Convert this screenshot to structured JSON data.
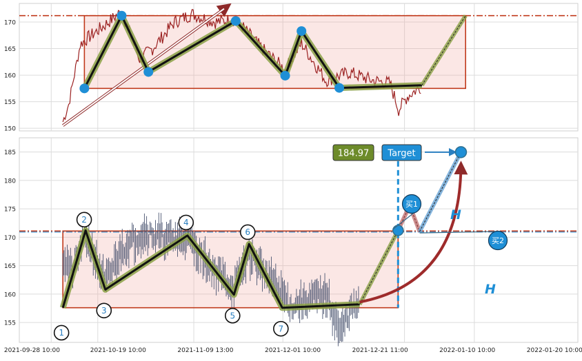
{
  "chart_data": [
    {
      "type": "line",
      "panel": "top",
      "ylim": [
        149.5,
        173.5
      ],
      "yticks": [
        150,
        155,
        160,
        165,
        170
      ],
      "grid": true,
      "resistance_level": 171.2,
      "support_level": 157.5,
      "pattern_points": [
        {
          "x": 0.145,
          "y": 157.5
        },
        {
          "x": 0.209,
          "y": 171.2
        },
        {
          "x": 0.255,
          "y": 160.6
        },
        {
          "x": 0.405,
          "y": 170.2
        },
        {
          "x": 0.49,
          "y": 159.9
        },
        {
          "x": 0.518,
          "y": 168.3
        },
        {
          "x": 0.583,
          "y": 157.6
        },
        {
          "x": 0.725,
          "y": 158.1
        },
        {
          "x": 0.8,
          "y": 171.2
        }
      ]
    },
    {
      "type": "line",
      "panel": "bottom",
      "ylim": [
        151.5,
        187.5
      ],
      "yticks": [
        155,
        160,
        165,
        170,
        175,
        180,
        185
      ],
      "grid": true,
      "x_tick_labels": [
        "2021-09-28 10:00",
        "2021-10-19 10:00",
        "2021-11-09 13:00",
        "2021-12-01 10:00",
        "2021-12-21 11:00",
        "2022-01-10 10:00",
        "2022-01-20 10:00"
      ],
      "resistance_level": 171.1,
      "support_level": 157.6,
      "target_value": "184.97",
      "target_label": "Target",
      "buy1_label": "买1",
      "buy2_label": "买2",
      "height_label": "H",
      "point_labels": [
        "1",
        "2",
        "3",
        "4",
        "5",
        "6",
        "7"
      ],
      "pattern_points": [
        {
          "x": 0.108,
          "y": 157.6
        },
        {
          "x": 0.147,
          "y": 171.2
        },
        {
          "x": 0.181,
          "y": 160.8
        },
        {
          "x": 0.322,
          "y": 170.3
        },
        {
          "x": 0.402,
          "y": 159.9
        },
        {
          "x": 0.428,
          "y": 168.8
        },
        {
          "x": 0.485,
          "y": 157.6
        },
        {
          "x": 0.618,
          "y": 158.2
        },
        {
          "x": 0.684,
          "y": 171.2
        }
      ],
      "breakout": {
        "x": 0.684,
        "y": 171.2
      },
      "pullback": {
        "x": 0.721,
        "y": 171.0
      },
      "target": {
        "x": 0.792,
        "y": 184.97
      }
    }
  ]
}
